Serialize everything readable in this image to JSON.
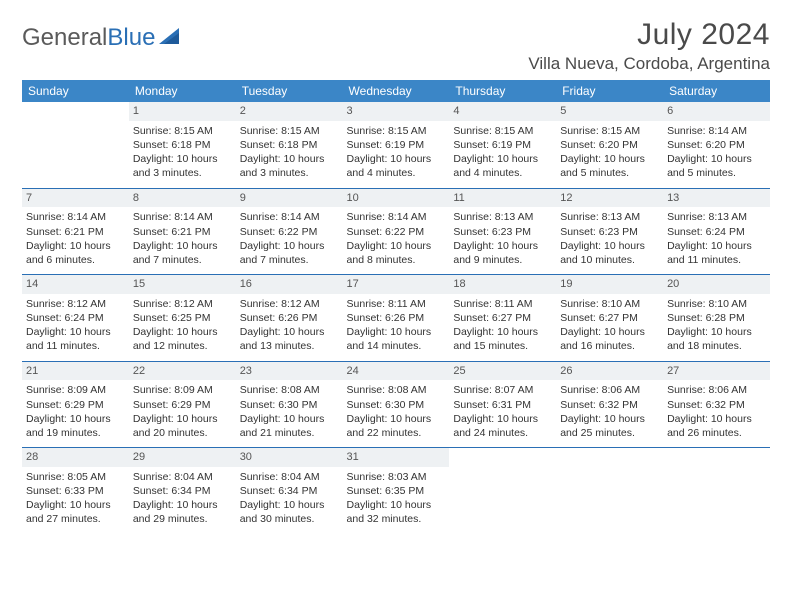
{
  "brand": {
    "name_part1": "General",
    "name_part2": "Blue"
  },
  "title": "July 2024",
  "location": "Villa Nueva, Cordoba, Argentina",
  "style": {
    "accent_color": "#3b86c7",
    "rule_color": "#2a6fb5",
    "daynum_bg": "#eef1f3",
    "text_color": "#333333",
    "header_text_color": "#4a4a4a",
    "background": "#ffffff",
    "month_title_fontsize": 30,
    "location_fontsize": 17,
    "dayhead_fontsize": 12,
    "cell_fontsize": 10.5
  },
  "day_headers": [
    "Sunday",
    "Monday",
    "Tuesday",
    "Wednesday",
    "Thursday",
    "Friday",
    "Saturday"
  ],
  "weeks": [
    [
      null,
      {
        "n": "1",
        "sunrise": "8:15 AM",
        "sunset": "6:18 PM",
        "daylight": "10 hours and 3 minutes."
      },
      {
        "n": "2",
        "sunrise": "8:15 AM",
        "sunset": "6:18 PM",
        "daylight": "10 hours and 3 minutes."
      },
      {
        "n": "3",
        "sunrise": "8:15 AM",
        "sunset": "6:19 PM",
        "daylight": "10 hours and 4 minutes."
      },
      {
        "n": "4",
        "sunrise": "8:15 AM",
        "sunset": "6:19 PM",
        "daylight": "10 hours and 4 minutes."
      },
      {
        "n": "5",
        "sunrise": "8:15 AM",
        "sunset": "6:20 PM",
        "daylight": "10 hours and 5 minutes."
      },
      {
        "n": "6",
        "sunrise": "8:14 AM",
        "sunset": "6:20 PM",
        "daylight": "10 hours and 5 minutes."
      }
    ],
    [
      {
        "n": "7",
        "sunrise": "8:14 AM",
        "sunset": "6:21 PM",
        "daylight": "10 hours and 6 minutes."
      },
      {
        "n": "8",
        "sunrise": "8:14 AM",
        "sunset": "6:21 PM",
        "daylight": "10 hours and 7 minutes."
      },
      {
        "n": "9",
        "sunrise": "8:14 AM",
        "sunset": "6:22 PM",
        "daylight": "10 hours and 7 minutes."
      },
      {
        "n": "10",
        "sunrise": "8:14 AM",
        "sunset": "6:22 PM",
        "daylight": "10 hours and 8 minutes."
      },
      {
        "n": "11",
        "sunrise": "8:13 AM",
        "sunset": "6:23 PM",
        "daylight": "10 hours and 9 minutes."
      },
      {
        "n": "12",
        "sunrise": "8:13 AM",
        "sunset": "6:23 PM",
        "daylight": "10 hours and 10 minutes."
      },
      {
        "n": "13",
        "sunrise": "8:13 AM",
        "sunset": "6:24 PM",
        "daylight": "10 hours and 11 minutes."
      }
    ],
    [
      {
        "n": "14",
        "sunrise": "8:12 AM",
        "sunset": "6:24 PM",
        "daylight": "10 hours and 11 minutes."
      },
      {
        "n": "15",
        "sunrise": "8:12 AM",
        "sunset": "6:25 PM",
        "daylight": "10 hours and 12 minutes."
      },
      {
        "n": "16",
        "sunrise": "8:12 AM",
        "sunset": "6:26 PM",
        "daylight": "10 hours and 13 minutes."
      },
      {
        "n": "17",
        "sunrise": "8:11 AM",
        "sunset": "6:26 PM",
        "daylight": "10 hours and 14 minutes."
      },
      {
        "n": "18",
        "sunrise": "8:11 AM",
        "sunset": "6:27 PM",
        "daylight": "10 hours and 15 minutes."
      },
      {
        "n": "19",
        "sunrise": "8:10 AM",
        "sunset": "6:27 PM",
        "daylight": "10 hours and 16 minutes."
      },
      {
        "n": "20",
        "sunrise": "8:10 AM",
        "sunset": "6:28 PM",
        "daylight": "10 hours and 18 minutes."
      }
    ],
    [
      {
        "n": "21",
        "sunrise": "8:09 AM",
        "sunset": "6:29 PM",
        "daylight": "10 hours and 19 minutes."
      },
      {
        "n": "22",
        "sunrise": "8:09 AM",
        "sunset": "6:29 PM",
        "daylight": "10 hours and 20 minutes."
      },
      {
        "n": "23",
        "sunrise": "8:08 AM",
        "sunset": "6:30 PM",
        "daylight": "10 hours and 21 minutes."
      },
      {
        "n": "24",
        "sunrise": "8:08 AM",
        "sunset": "6:30 PM",
        "daylight": "10 hours and 22 minutes."
      },
      {
        "n": "25",
        "sunrise": "8:07 AM",
        "sunset": "6:31 PM",
        "daylight": "10 hours and 24 minutes."
      },
      {
        "n": "26",
        "sunrise": "8:06 AM",
        "sunset": "6:32 PM",
        "daylight": "10 hours and 25 minutes."
      },
      {
        "n": "27",
        "sunrise": "8:06 AM",
        "sunset": "6:32 PM",
        "daylight": "10 hours and 26 minutes."
      }
    ],
    [
      {
        "n": "28",
        "sunrise": "8:05 AM",
        "sunset": "6:33 PM",
        "daylight": "10 hours and 27 minutes."
      },
      {
        "n": "29",
        "sunrise": "8:04 AM",
        "sunset": "6:34 PM",
        "daylight": "10 hours and 29 minutes."
      },
      {
        "n": "30",
        "sunrise": "8:04 AM",
        "sunset": "6:34 PM",
        "daylight": "10 hours and 30 minutes."
      },
      {
        "n": "31",
        "sunrise": "8:03 AM",
        "sunset": "6:35 PM",
        "daylight": "10 hours and 32 minutes."
      },
      null,
      null,
      null
    ]
  ],
  "labels": {
    "sunrise": "Sunrise: ",
    "sunset": "Sunset: ",
    "daylight": "Daylight: "
  }
}
